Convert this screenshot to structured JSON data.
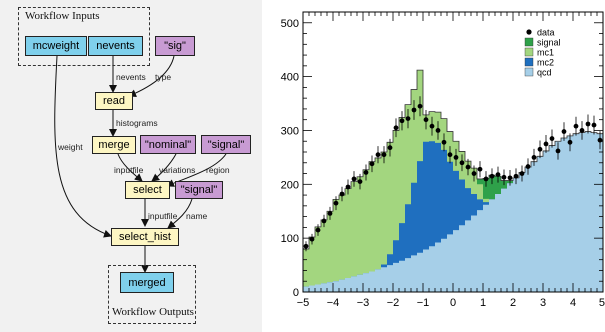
{
  "workflow": {
    "inputs_title": "Workflow Inputs",
    "outputs_title": "Workflow Outputs",
    "nodes": {
      "mcweight": "mcweight",
      "nevents": "nevents",
      "sig": "\"sig\"",
      "read": "read",
      "merge": "merge",
      "nominal": "\"nominal\"",
      "signal_region": "\"signal\"",
      "select": "select",
      "signal_name": "\"signal\"",
      "select_hist": "select_hist",
      "merged": "merged"
    },
    "edges": {
      "nevents": "nevents",
      "type": "type",
      "histograms": "histograms",
      "weight": "weight",
      "inputfile_merge": "inputfile",
      "variations": "variations",
      "region": "region",
      "inputfile_select": "inputfile",
      "name": "name"
    },
    "colors": {
      "input": "#7fd0ec",
      "literal": "#c89bd3",
      "step": "#fdf6c3"
    }
  },
  "chart_data": {
    "type": "bar",
    "stacked": true,
    "histtype": "stepfilled",
    "title": "",
    "xlabel": "",
    "ylabel": "",
    "xlim": [
      -5,
      5
    ],
    "ylim": [
      0,
      520
    ],
    "xticks": [
      -5,
      -4,
      -3,
      -2,
      -1,
      0,
      1,
      2,
      3,
      4,
      5
    ],
    "yticks": [
      0,
      100,
      200,
      300,
      400,
      500
    ],
    "legend_position": "top-right",
    "bin_width": 0.2,
    "x": [
      -4.9,
      -4.7,
      -4.5,
      -4.3,
      -4.1,
      -3.9,
      -3.7,
      -3.5,
      -3.3,
      -3.1,
      -2.9,
      -2.7,
      -2.5,
      -2.3,
      -2.1,
      -1.9,
      -1.7,
      -1.5,
      -1.3,
      -1.1,
      -0.9,
      -0.7,
      -0.5,
      -0.3,
      -0.1,
      0.1,
      0.3,
      0.5,
      0.7,
      0.9,
      1.1,
      1.3,
      1.5,
      1.7,
      1.9,
      2.1,
      2.3,
      2.5,
      2.7,
      2.9,
      3.1,
      3.3,
      3.5,
      3.7,
      3.9,
      4.1,
      4.3,
      4.5,
      4.7,
      4.9
    ],
    "series": [
      {
        "name": "qcd",
        "color": "#a6cfe8",
        "values": [
          10,
          12,
          14,
          16,
          18,
          20,
          23,
          26,
          29,
          32,
          35,
          38,
          42,
          46,
          50,
          54,
          58,
          63,
          68,
          73,
          79,
          85,
          92,
          99,
          107,
          115,
          124,
          133,
          142,
          152,
          162,
          172,
          182,
          192,
          202,
          212,
          222,
          232,
          242,
          252,
          262,
          272,
          280,
          286,
          290,
          294,
          296,
          298,
          296,
          294
        ]
      },
      {
        "name": "mc2",
        "color": "#1f6fbf",
        "values": [
          0,
          0,
          0,
          0,
          0,
          0,
          0,
          0,
          0,
          0,
          0,
          0,
          0,
          5,
          20,
          42,
          70,
          100,
          135,
          170,
          200,
          195,
          185,
          165,
          135,
          110,
          85,
          60,
          40,
          20,
          5,
          0,
          0,
          0,
          0,
          0,
          0,
          0,
          0,
          0,
          0,
          0,
          0,
          0,
          0,
          0,
          0,
          0,
          0,
          0
        ]
      },
      {
        "name": "mc1",
        "color": "#a3d67f",
        "values": [
          70,
          90,
          107,
          118,
          132,
          152,
          157,
          166,
          176,
          182,
          192,
          204,
          207,
          209,
          208,
          204,
          196,
          185,
          173,
          169,
          50,
          55,
          57,
          58,
          56,
          55,
          52,
          50,
          48,
          28,
          6,
          0,
          0,
          0,
          0,
          0,
          0,
          0,
          0,
          0,
          0,
          0,
          0,
          0,
          0,
          0,
          0,
          0,
          0,
          0
        ]
      },
      {
        "name": "signal",
        "color": "#2fa14a",
        "values": [
          0,
          0,
          0,
          0,
          0,
          0,
          0,
          0,
          0,
          0,
          0,
          0,
          0,
          0,
          0,
          0,
          0,
          0,
          0,
          0,
          0,
          0,
          0,
          0,
          0,
          0,
          0,
          0,
          0,
          10,
          38,
          45,
          33,
          15,
          5,
          0,
          0,
          0,
          0,
          0,
          0,
          0,
          0,
          0,
          0,
          0,
          0,
          0,
          0,
          0
        ]
      }
    ],
    "data": {
      "name": "data",
      "values": [
        85,
        98,
        115,
        132,
        146,
        165,
        182,
        195,
        210,
        205,
        222,
        238,
        255,
        255,
        268,
        305,
        318,
        322,
        338,
        345,
        320,
        308,
        300,
        278,
        255,
        250,
        240,
        232,
        220,
        228,
        210,
        215,
        218,
        213,
        212,
        215,
        220,
        233,
        250,
        265,
        275,
        285,
        262,
        298,
        278,
        308,
        300,
        312,
        310,
        282
      ]
    },
    "legend": [
      {
        "label": "data",
        "marker": "point"
      },
      {
        "label": "signal",
        "color": "#2fa14a"
      },
      {
        "label": "mc1",
        "color": "#a3d67f"
      },
      {
        "label": "mc2",
        "color": "#1f6fbf"
      },
      {
        "label": "qcd",
        "color": "#a6cfe8"
      }
    ]
  }
}
